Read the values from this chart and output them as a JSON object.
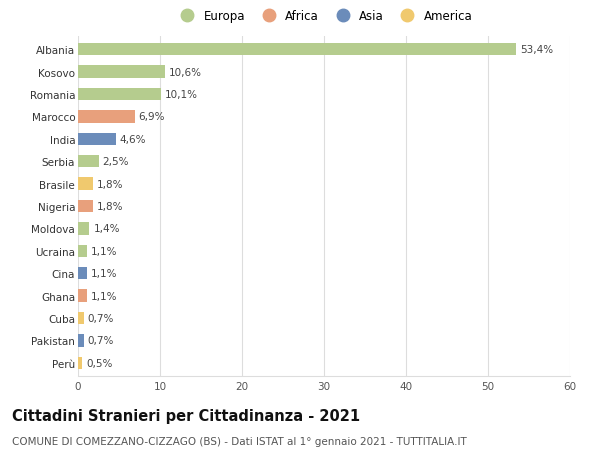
{
  "countries": [
    "Albania",
    "Kosovo",
    "Romania",
    "Marocco",
    "India",
    "Serbia",
    "Brasile",
    "Nigeria",
    "Moldova",
    "Ucraina",
    "Cina",
    "Ghana",
    "Cuba",
    "Pakistan",
    "Perù"
  ],
  "values": [
    53.4,
    10.6,
    10.1,
    6.9,
    4.6,
    2.5,
    1.8,
    1.8,
    1.4,
    1.1,
    1.1,
    1.1,
    0.7,
    0.7,
    0.5
  ],
  "labels": [
    "53,4%",
    "10,6%",
    "10,1%",
    "6,9%",
    "4,6%",
    "2,5%",
    "1,8%",
    "1,8%",
    "1,4%",
    "1,1%",
    "1,1%",
    "1,1%",
    "0,7%",
    "0,7%",
    "0,5%"
  ],
  "continents": [
    "Europa",
    "Europa",
    "Europa",
    "Africa",
    "Asia",
    "Europa",
    "America",
    "Africa",
    "Europa",
    "Europa",
    "Asia",
    "Africa",
    "America",
    "Asia",
    "America"
  ],
  "continent_colors": {
    "Europa": "#b5cc8e",
    "Africa": "#e8a07c",
    "Asia": "#6b8cba",
    "America": "#f0c96e"
  },
  "legend_order": [
    "Europa",
    "Africa",
    "Asia",
    "America"
  ],
  "title": "Cittadini Stranieri per Cittadinanza - 2021",
  "subtitle": "COMUNE DI COMEZZANO-CIZZAGO (BS) - Dati ISTAT al 1° gennaio 2021 - TUTTITALIA.IT",
  "xlim": [
    0,
    60
  ],
  "xticks": [
    0,
    10,
    20,
    30,
    40,
    50,
    60
  ],
  "background_color": "#ffffff",
  "grid_color": "#dddddd",
  "bar_height": 0.55,
  "title_fontsize": 10.5,
  "subtitle_fontsize": 7.5,
  "label_fontsize": 7.5,
  "tick_fontsize": 7.5,
  "legend_fontsize": 8.5
}
